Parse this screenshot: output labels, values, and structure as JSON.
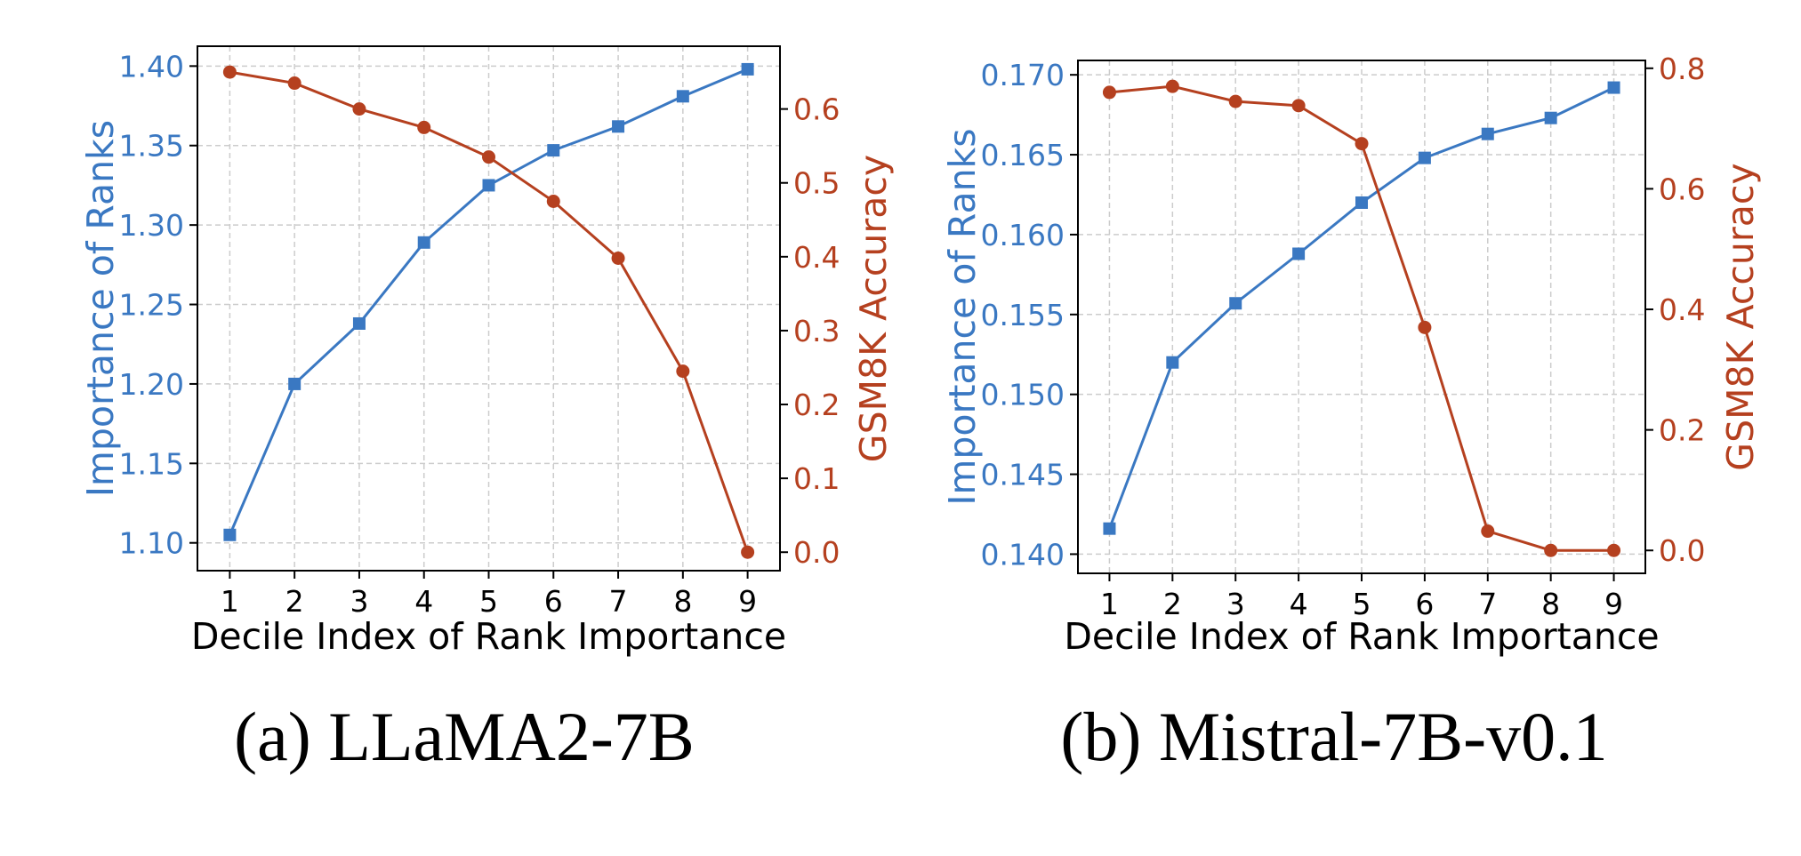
{
  "chart_data": [
    {
      "type": "line",
      "caption": "(a) LLaMA2-7B",
      "xlabel": "Decile Index of Rank Importance",
      "ylabel_left": "Importance of Ranks",
      "ylabel_right": "GSM8K Accuracy",
      "x": [
        1,
        2,
        3,
        4,
        5,
        6,
        7,
        8,
        9
      ],
      "xticks": [
        "1",
        "2",
        "3",
        "4",
        "5",
        "6",
        "7",
        "8",
        "9"
      ],
      "xlim": [
        0.5,
        9.5
      ],
      "ylim_left": [
        1.0825,
        1.4125
      ],
      "yticks_left": [
        "1.10",
        "1.15",
        "1.20",
        "1.25",
        "1.30",
        "1.35",
        "1.40"
      ],
      "ylim_right": [
        -0.025,
        0.685
      ],
      "yticks_right": [
        "0.0",
        "0.1",
        "0.2",
        "0.3",
        "0.4",
        "0.5",
        "0.6"
      ],
      "grid": true,
      "series": [
        {
          "name": "Importance of Ranks",
          "axis": "left",
          "marker": "square",
          "color": "#3a78c2",
          "values": [
            1.105,
            1.2,
            1.238,
            1.289,
            1.325,
            1.347,
            1.362,
            1.381,
            1.398
          ]
        },
        {
          "name": "GSM8K Accuracy",
          "axis": "right",
          "marker": "circle",
          "color": "#b5401f",
          "values": [
            0.65,
            0.635,
            0.6,
            0.575,
            0.535,
            0.475,
            0.398,
            0.245,
            0.0
          ]
        }
      ]
    },
    {
      "type": "line",
      "caption": "(b) Mistral-7B-v0.1",
      "xlabel": "Decile Index of Rank Importance",
      "ylabel_left": "Importance of Ranks",
      "ylabel_right": "GSM8K Accuracy",
      "x": [
        1,
        2,
        3,
        4,
        5,
        6,
        7,
        8,
        9
      ],
      "xticks": [
        "1",
        "2",
        "3",
        "4",
        "5",
        "6",
        "7",
        "8",
        "9"
      ],
      "xlim": [
        0.5,
        9.5
      ],
      "ylim_left": [
        0.1388,
        0.1709
      ],
      "yticks_left": [
        "0.140",
        "0.145",
        "0.150",
        "0.155",
        "0.160",
        "0.165",
        "0.170"
      ],
      "ylim_right": [
        -0.038,
        0.813
      ],
      "yticks_right": [
        "0.0",
        "0.2",
        "0.4",
        "0.6",
        "0.8"
      ],
      "grid": true,
      "series": [
        {
          "name": "Importance of Ranks",
          "axis": "left",
          "marker": "square",
          "color": "#3a78c2",
          "values": [
            0.1416,
            0.152,
            0.1557,
            0.1588,
            0.162,
            0.1648,
            0.1663,
            0.1673,
            0.1692
          ]
        },
        {
          "name": "GSM8K Accuracy",
          "axis": "right",
          "marker": "circle",
          "color": "#b5401f",
          "values": [
            0.76,
            0.77,
            0.745,
            0.738,
            0.675,
            0.37,
            0.032,
            0.0,
            0.0
          ]
        }
      ]
    }
  ],
  "colors": {
    "left_axis": "#3a78c2",
    "right_axis": "#b5401f",
    "grid": "#cccccc",
    "frame": "#000000"
  }
}
